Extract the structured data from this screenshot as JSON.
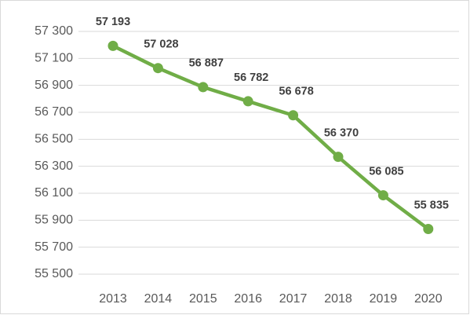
{
  "chart_data": {
    "type": "line",
    "categories": [
      "2013",
      "2014",
      "2015",
      "2016",
      "2017",
      "2018",
      "2019",
      "2020"
    ],
    "values": [
      57193,
      57028,
      56887,
      56782,
      56678,
      56370,
      56085,
      55835
    ],
    "value_labels": [
      "57 193",
      "57 028",
      "56 887",
      "56 782",
      "56 678",
      "56 370",
      "56 085",
      "55 835"
    ],
    "color": "#70ad47",
    "ylim": [
      55500,
      57300
    ],
    "yticks": [
      {
        "value": 55500,
        "label": "55 500"
      },
      {
        "value": 55700,
        "label": "55 700"
      },
      {
        "value": 55900,
        "label": "55 900"
      },
      {
        "value": 56100,
        "label": "56 100"
      },
      {
        "value": 56300,
        "label": "56 300"
      },
      {
        "value": 56500,
        "label": "56 500"
      },
      {
        "value": 56700,
        "label": "56 700"
      },
      {
        "value": 56900,
        "label": "56 900"
      },
      {
        "value": 57100,
        "label": "57 100"
      },
      {
        "value": 57300,
        "label": "57 300"
      }
    ],
    "grid": true
  }
}
